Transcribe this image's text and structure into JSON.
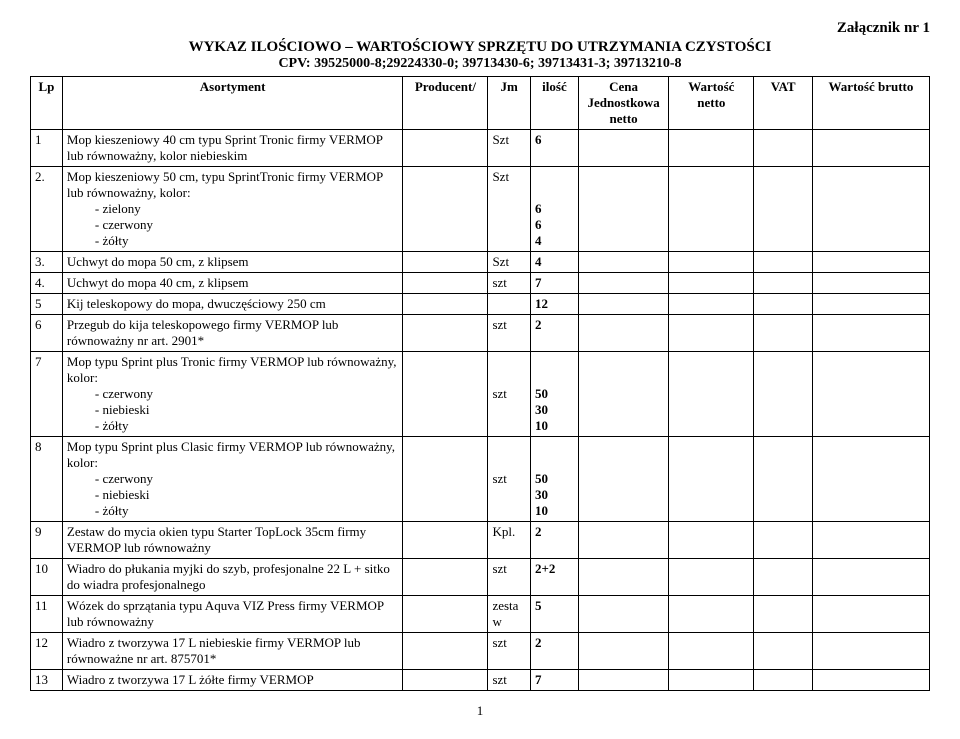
{
  "header": {
    "attachment": "Załącznik nr 1",
    "title": "WYKAZ ILOŚCIOWO – WARTOŚCIOWY SPRZĘTU DO UTRZYMANIA CZYSTOŚCI",
    "cpv": "CPV: 39525000-8;29224330-0; 39713430-6; 39713431-3; 39713210-8"
  },
  "columns": {
    "lp": "Lp",
    "asortyment": "Asortyment",
    "producent": "Producent/",
    "jm": "Jm",
    "ilosc": "ilość",
    "cena_line1": "Cena",
    "cena_line2": "Jednostkowa",
    "cena_line3": "netto",
    "wartosc_netto_line1": "Wartość",
    "wartosc_netto_line2": "netto",
    "vat": "VAT",
    "wartosc_brutto": "Wartość brutto"
  },
  "rows": [
    {
      "lp": "1",
      "asort_main": "Mop kieszeniowy 40 cm typu Sprint Tronic  firmy VERMOP lub równoważny, kolor niebieskim",
      "asort_items": [],
      "jm": "Szt",
      "ilosc_main": "6",
      "ilosc_items": []
    },
    {
      "lp": "2.",
      "asort_main": "Mop kieszeniowy 50 cm, typu SprintTronic firmy VERMOP lub równoważny, kolor:",
      "asort_items": [
        "zielony",
        "czerwony",
        "żółty"
      ],
      "jm": "Szt",
      "ilosc_main": "",
      "ilosc_items": [
        "6",
        "6",
        "4"
      ]
    },
    {
      "lp": "3.",
      "asort_main": "Uchwyt do mopa 50 cm, z klipsem",
      "asort_items": [],
      "jm": "Szt",
      "ilosc_main": "4",
      "ilosc_items": []
    },
    {
      "lp": "4.",
      "asort_main": "Uchwyt do mopa 40 cm, z klipsem",
      "asort_items": [],
      "jm": "szt",
      "ilosc_main": "7",
      "ilosc_items": []
    },
    {
      "lp": "5",
      "asort_main": "Kij teleskopowy do mopa, dwuczęściowy 250 cm",
      "asort_items": [],
      "jm": "",
      "ilosc_main": "12",
      "ilosc_items": []
    },
    {
      "lp": "6",
      "asort_main": "Przegub do kija teleskopowego firmy VERMOP lub równoważny nr art. 2901*",
      "asort_items": [],
      "jm": "szt",
      "ilosc_main": "2",
      "ilosc_items": []
    },
    {
      "lp": "7",
      "asort_main": "Mop typu Sprint plus Tronic firmy VERMOP lub równoważny, kolor:",
      "asort_items": [
        "czerwony",
        "niebieski",
        "żółty"
      ],
      "jm": "szt",
      "jm_offset_lines": 2,
      "ilosc_main": "",
      "ilosc_items": [
        "50",
        "30",
        "10"
      ]
    },
    {
      "lp": "8",
      "asort_main": "Mop typu Sprint plus Clasic firmy VERMOP lub równoważny, kolor:",
      "asort_items": [
        "czerwony",
        "niebieski",
        "żółty"
      ],
      "jm": "szt",
      "jm_offset_lines": 2,
      "ilosc_main": "",
      "ilosc_items": [
        "50",
        "30",
        "10"
      ]
    },
    {
      "lp": "9",
      "asort_main": "Zestaw do mycia okien typu Starter TopLock 35cm firmy VERMOP lub równoważny",
      "asort_items": [],
      "jm": "Kpl.",
      "ilosc_main": "2",
      "ilosc_items": []
    },
    {
      "lp": "10",
      "asort_main": "Wiadro do płukania myjki do szyb, profesjonalne 22 L + sitko do wiadra profesjonalnego",
      "asort_items": [],
      "jm": "szt",
      "ilosc_main": "2+2",
      "ilosc_items": []
    },
    {
      "lp": "11",
      "asort_main": "Wózek do sprzątania typu Aquva VIZ Press firmy VERMOP lub równoważny",
      "asort_items": [],
      "jm": "zestaw",
      "ilosc_main": "5",
      "ilosc_items": []
    },
    {
      "lp": "12",
      "asort_main": "Wiadro z tworzywa 17 L niebieskie firmy VERMOP lub równoważne nr art. 875701*",
      "asort_items": [],
      "jm": "szt",
      "ilosc_main": "2",
      "ilosc_items": []
    },
    {
      "lp": "13",
      "asort_main": "Wiadro z tworzywa 17 L żółte firmy VERMOP",
      "asort_items": [],
      "jm": "szt",
      "ilosc_main": "7",
      "ilosc_items": []
    }
  ],
  "page_number": "1"
}
